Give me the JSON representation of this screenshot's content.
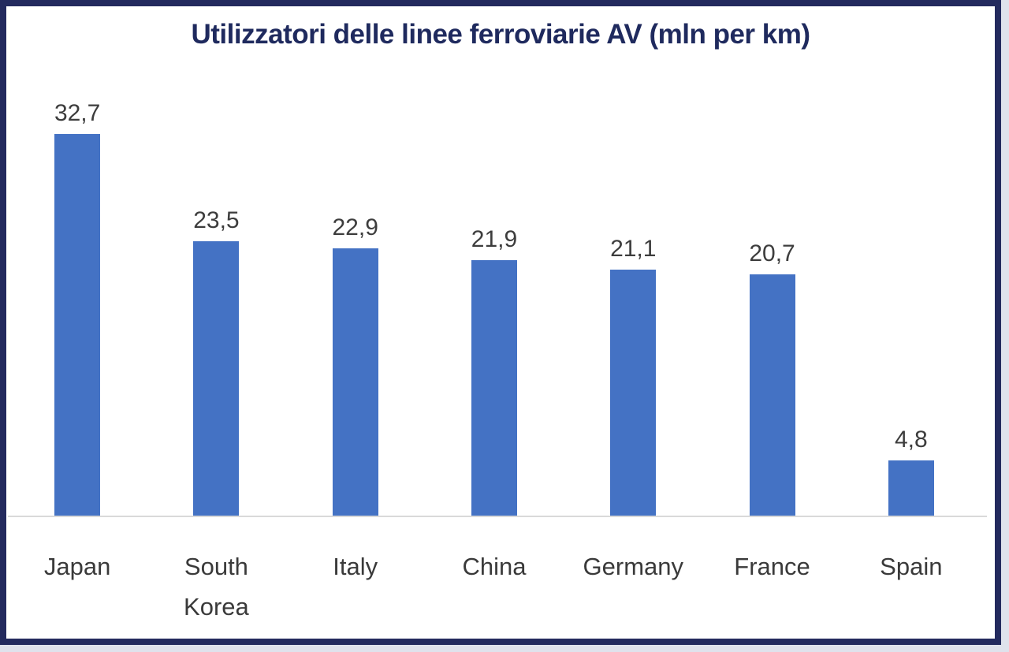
{
  "frame": {
    "border_color": "#232a5e",
    "background": "#ffffff"
  },
  "chart_data": {
    "type": "bar",
    "title": "Utilizzatori delle linee ferroviarie AV (mln per km)",
    "categories": [
      "Japan",
      "South Korea",
      "Italy",
      "China",
      "Germany",
      "France",
      "Spain"
    ],
    "values": [
      32.7,
      23.5,
      22.9,
      21.9,
      21.1,
      20.7,
      4.8
    ],
    "value_labels": [
      "32,7",
      "23,5",
      "22,9",
      "21,9",
      "21,1",
      "20,7",
      "4,8"
    ],
    "decimal_separator": ",",
    "xlabel": "",
    "ylabel": "",
    "ylim": [
      0,
      35
    ],
    "grid": false,
    "legend": false,
    "data_labels_position": "above-bar",
    "bar_color": "#4472c4",
    "title_color": "#1f2a5e",
    "value_label_color": "#3d3d3d",
    "category_label_color": "#3a3a3a",
    "axis_line_color": "#d9d9d9"
  }
}
